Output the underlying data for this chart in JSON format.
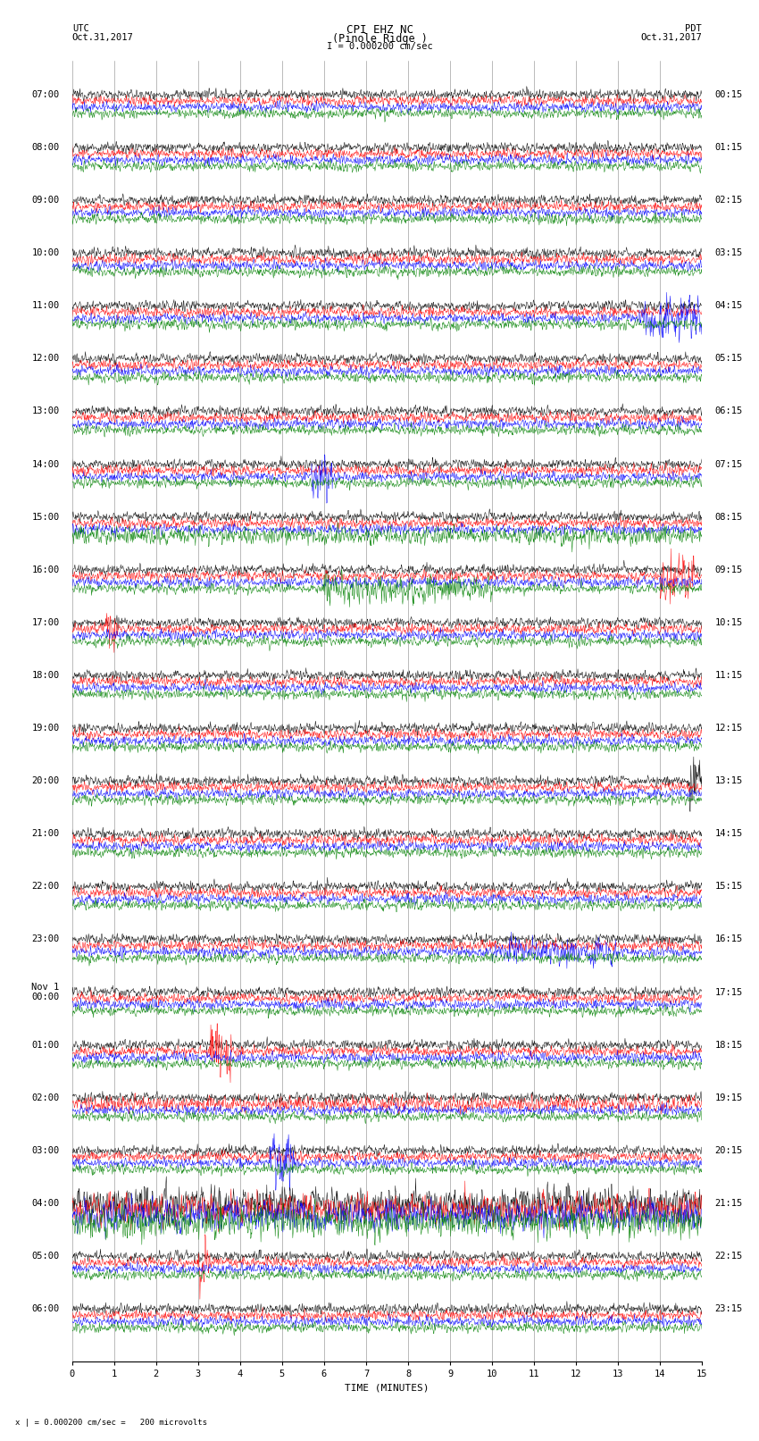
{
  "title_line1": "CPI EHZ NC",
  "title_line2": "(Pinole Ridge )",
  "scale_text": "I = 0.000200 cm/sec",
  "bottom_note": "x | = 0.000200 cm/sec =   200 microvolts",
  "left_label_line1": "UTC",
  "left_label_line2": "Oct.31,2017",
  "right_label_line1": "PDT",
  "right_label_line2": "Oct.31,2017",
  "xlabel": "TIME (MINUTES)",
  "utc_times": [
    "07:00",
    "08:00",
    "09:00",
    "10:00",
    "11:00",
    "12:00",
    "13:00",
    "14:00",
    "15:00",
    "16:00",
    "17:00",
    "18:00",
    "19:00",
    "20:00",
    "21:00",
    "22:00",
    "23:00",
    "Nov 1\n00:00",
    "01:00",
    "02:00",
    "03:00",
    "04:00",
    "05:00",
    "06:00"
  ],
  "pdt_times": [
    "00:15",
    "01:15",
    "02:15",
    "03:15",
    "04:15",
    "05:15",
    "06:15",
    "07:15",
    "08:15",
    "09:15",
    "10:15",
    "11:15",
    "12:15",
    "13:15",
    "14:15",
    "15:15",
    "16:15",
    "17:15",
    "18:15",
    "19:15",
    "20:15",
    "21:15",
    "22:15",
    "23:15"
  ],
  "n_rows": 24,
  "traces_per_row": 4,
  "colors": [
    "black",
    "red",
    "blue",
    "green"
  ],
  "minutes": 15,
  "samples_per_trace": 1800,
  "background_color": "white",
  "grid_color": "#888888",
  "text_color": "black",
  "font_size": 7.5,
  "title_font_size": 9,
  "trace_amp": 0.28,
  "trace_sep": 0.55,
  "row_sep": 3.0
}
